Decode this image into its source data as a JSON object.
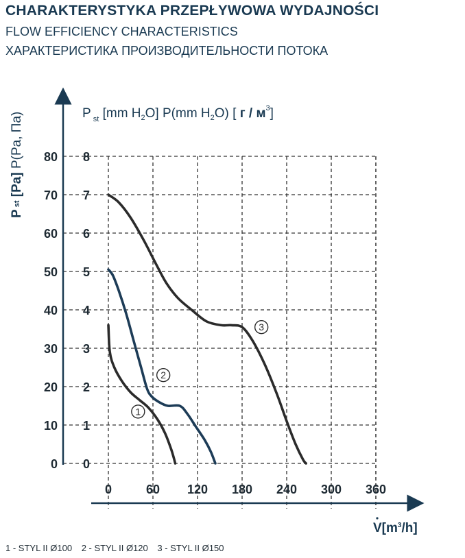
{
  "header": {
    "title_pl": "CHARAKTERYSTYKA PRZEPŁYWOWA WYDAJNOŚCI",
    "title_en": "FLOW EFFICIENCY CHARACTERISTICS",
    "title_ru": "ХАРАКТЕРИСТИКА ПРОИЗВОДИТЕЛЬНОСТИ ПОТОКА"
  },
  "legend": {
    "item1": "1 - STYL II Ø100",
    "item2": "2 - STYL II Ø120",
    "item3": "3 - STYL II Ø150"
  },
  "colors": {
    "axis": "#1a3a52",
    "curve_dark": "#2b2b2b",
    "curve_blue": "#1d3c57",
    "grid": "#333333"
  },
  "chart_data": {
    "type": "line",
    "title": "",
    "xlabel": "V̇[m³/h]",
    "ylabel_left": "Pst [Pa] P(Pa, Па)",
    "ylabel_top": "P st [mm H2O] P(mm H2O) [ г / м³]",
    "xlim": [
      0,
      360
    ],
    "ylim": [
      0,
      80
    ],
    "x_ticks": [
      0,
      60,
      120,
      180,
      240,
      300,
      360
    ],
    "y_ticks_pa": [
      0,
      10,
      20,
      30,
      40,
      50,
      60,
      70,
      80
    ],
    "y_ticks_mmh2o": [
      0,
      1,
      2,
      3,
      4,
      5,
      6,
      7,
      8
    ],
    "grid": true,
    "series": [
      {
        "name": "1",
        "color": "#2b2b2b",
        "label_at": [
          40,
          13.5
        ],
        "points": [
          [
            0,
            36
          ],
          [
            2,
            29
          ],
          [
            8,
            25
          ],
          [
            18,
            21.5
          ],
          [
            30,
            18.5
          ],
          [
            42,
            16.5
          ],
          [
            54,
            14.5
          ],
          [
            66,
            11.5
          ],
          [
            76,
            8
          ],
          [
            84,
            4
          ],
          [
            88,
            1.5
          ],
          [
            90,
            0
          ]
        ]
      },
      {
        "name": "2",
        "color": "#1d3c57",
        "label_at": [
          74,
          23
        ],
        "points": [
          [
            0,
            50.5
          ],
          [
            6,
            49
          ],
          [
            14,
            45
          ],
          [
            24,
            39
          ],
          [
            34,
            32
          ],
          [
            44,
            25
          ],
          [
            52,
            19.5
          ],
          [
            58,
            17.5
          ],
          [
            68,
            16
          ],
          [
            80,
            15
          ],
          [
            96,
            15
          ],
          [
            106,
            13
          ],
          [
            118,
            9.5
          ],
          [
            130,
            6
          ],
          [
            138,
            3
          ],
          [
            144,
            0
          ]
        ]
      },
      {
        "name": "3",
        "color": "#2b2b2b",
        "label_at": [
          206,
          35.5
        ],
        "points": [
          [
            0,
            70
          ],
          [
            14,
            68
          ],
          [
            30,
            64
          ],
          [
            48,
            58
          ],
          [
            64,
            52
          ],
          [
            78,
            47
          ],
          [
            94,
            43
          ],
          [
            112,
            40
          ],
          [
            132,
            37
          ],
          [
            152,
            36
          ],
          [
            166,
            36
          ],
          [
            180,
            35.5
          ],
          [
            194,
            32
          ],
          [
            210,
            26
          ],
          [
            226,
            18.5
          ],
          [
            240,
            11
          ],
          [
            252,
            5
          ],
          [
            262,
            1
          ],
          [
            266,
            0
          ]
        ]
      }
    ]
  }
}
